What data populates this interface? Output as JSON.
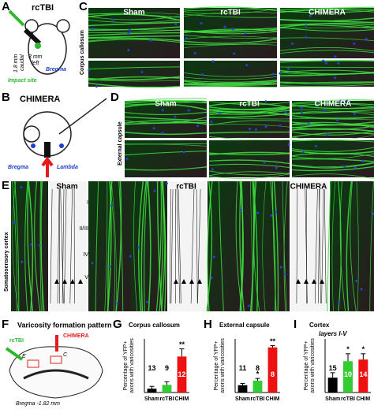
{
  "panel_a": {
    "letter": "A",
    "title": "rcTBI",
    "dist_x": "3 mm",
    "dir_x": "left",
    "dist_y": "1.8 mm",
    "dir_y": "caudal",
    "landmark": "Bregma",
    "site": "Impact site"
  },
  "panel_b": {
    "letter": "B",
    "title": "CHIMERA",
    "landmark_1": "Bregma",
    "landmark_2": "Lambda"
  },
  "panel_c": {
    "letter": "C",
    "columns": [
      "Sham",
      "rcTBI",
      "CHIMERA"
    ],
    "region": "Corpus callosum"
  },
  "panel_d": {
    "letter": "D",
    "columns": [
      "Sham",
      "rcTBI",
      "CHIMERA"
    ],
    "region": "External capsule"
  },
  "panel_e": {
    "letter": "E",
    "columns": [
      "Sham",
      "rcTBI",
      "CHIMERA"
    ],
    "region": "Somatosensory cortex",
    "layers": [
      "I",
      "II/III",
      "IV",
      "V"
    ]
  },
  "panel_f": {
    "letter": "F",
    "title": "Varicosity formation pattern",
    "model_1": "rcTBI",
    "model_2": "CHIMERA",
    "box_1": "E",
    "box_2": "C",
    "caption": "Bregma -1.82 mm"
  },
  "chart_data": [
    {
      "type": "bar",
      "letter": "G",
      "title": "Corpus callosum",
      "ylabel": [
        "Percentage of YFP+",
        "axons with varicosities"
      ],
      "categories": [
        "Sham",
        "rcTBI",
        "CHIM"
      ],
      "values": [
        5,
        10,
        47
      ],
      "errors": [
        3,
        4,
        10
      ],
      "n": [
        13,
        9,
        12
      ],
      "significance": [
        null,
        null,
        "**"
      ],
      "colors": [
        "#000000",
        "#33cc33",
        "#ee1111"
      ],
      "ylim": [
        0,
        70
      ]
    },
    {
      "type": "bar",
      "letter": "H",
      "title": "External capsule",
      "ylabel": [
        "Percentage of YFP+",
        "axons with varicosities"
      ],
      "categories": [
        "Sham",
        "rcTBI",
        "CHIM"
      ],
      "values": [
        13,
        21,
        80
      ],
      "errors": [
        3,
        4,
        3
      ],
      "n": [
        11,
        8,
        8
      ],
      "significance": [
        null,
        "*",
        "**"
      ],
      "colors": [
        "#000000",
        "#33cc33",
        "#ee1111"
      ],
      "ylim": [
        0,
        95
      ]
    },
    {
      "type": "bar",
      "letter": "I",
      "title": "Cortex",
      "subtitle": "layers I-V",
      "ylabel": [
        "Percentage of YFP+",
        "axons with varicosities"
      ],
      "categories": [
        "Sham",
        "rcTBI",
        "CHIM"
      ],
      "values": [
        18,
        38,
        40
      ],
      "errors": [
        6,
        9,
        7
      ],
      "n": [
        15,
        10,
        14
      ],
      "significance": [
        null,
        "*",
        "*"
      ],
      "colors": [
        "#000000",
        "#33cc33",
        "#ee1111"
      ],
      "ylim": [
        0,
        65
      ]
    }
  ]
}
